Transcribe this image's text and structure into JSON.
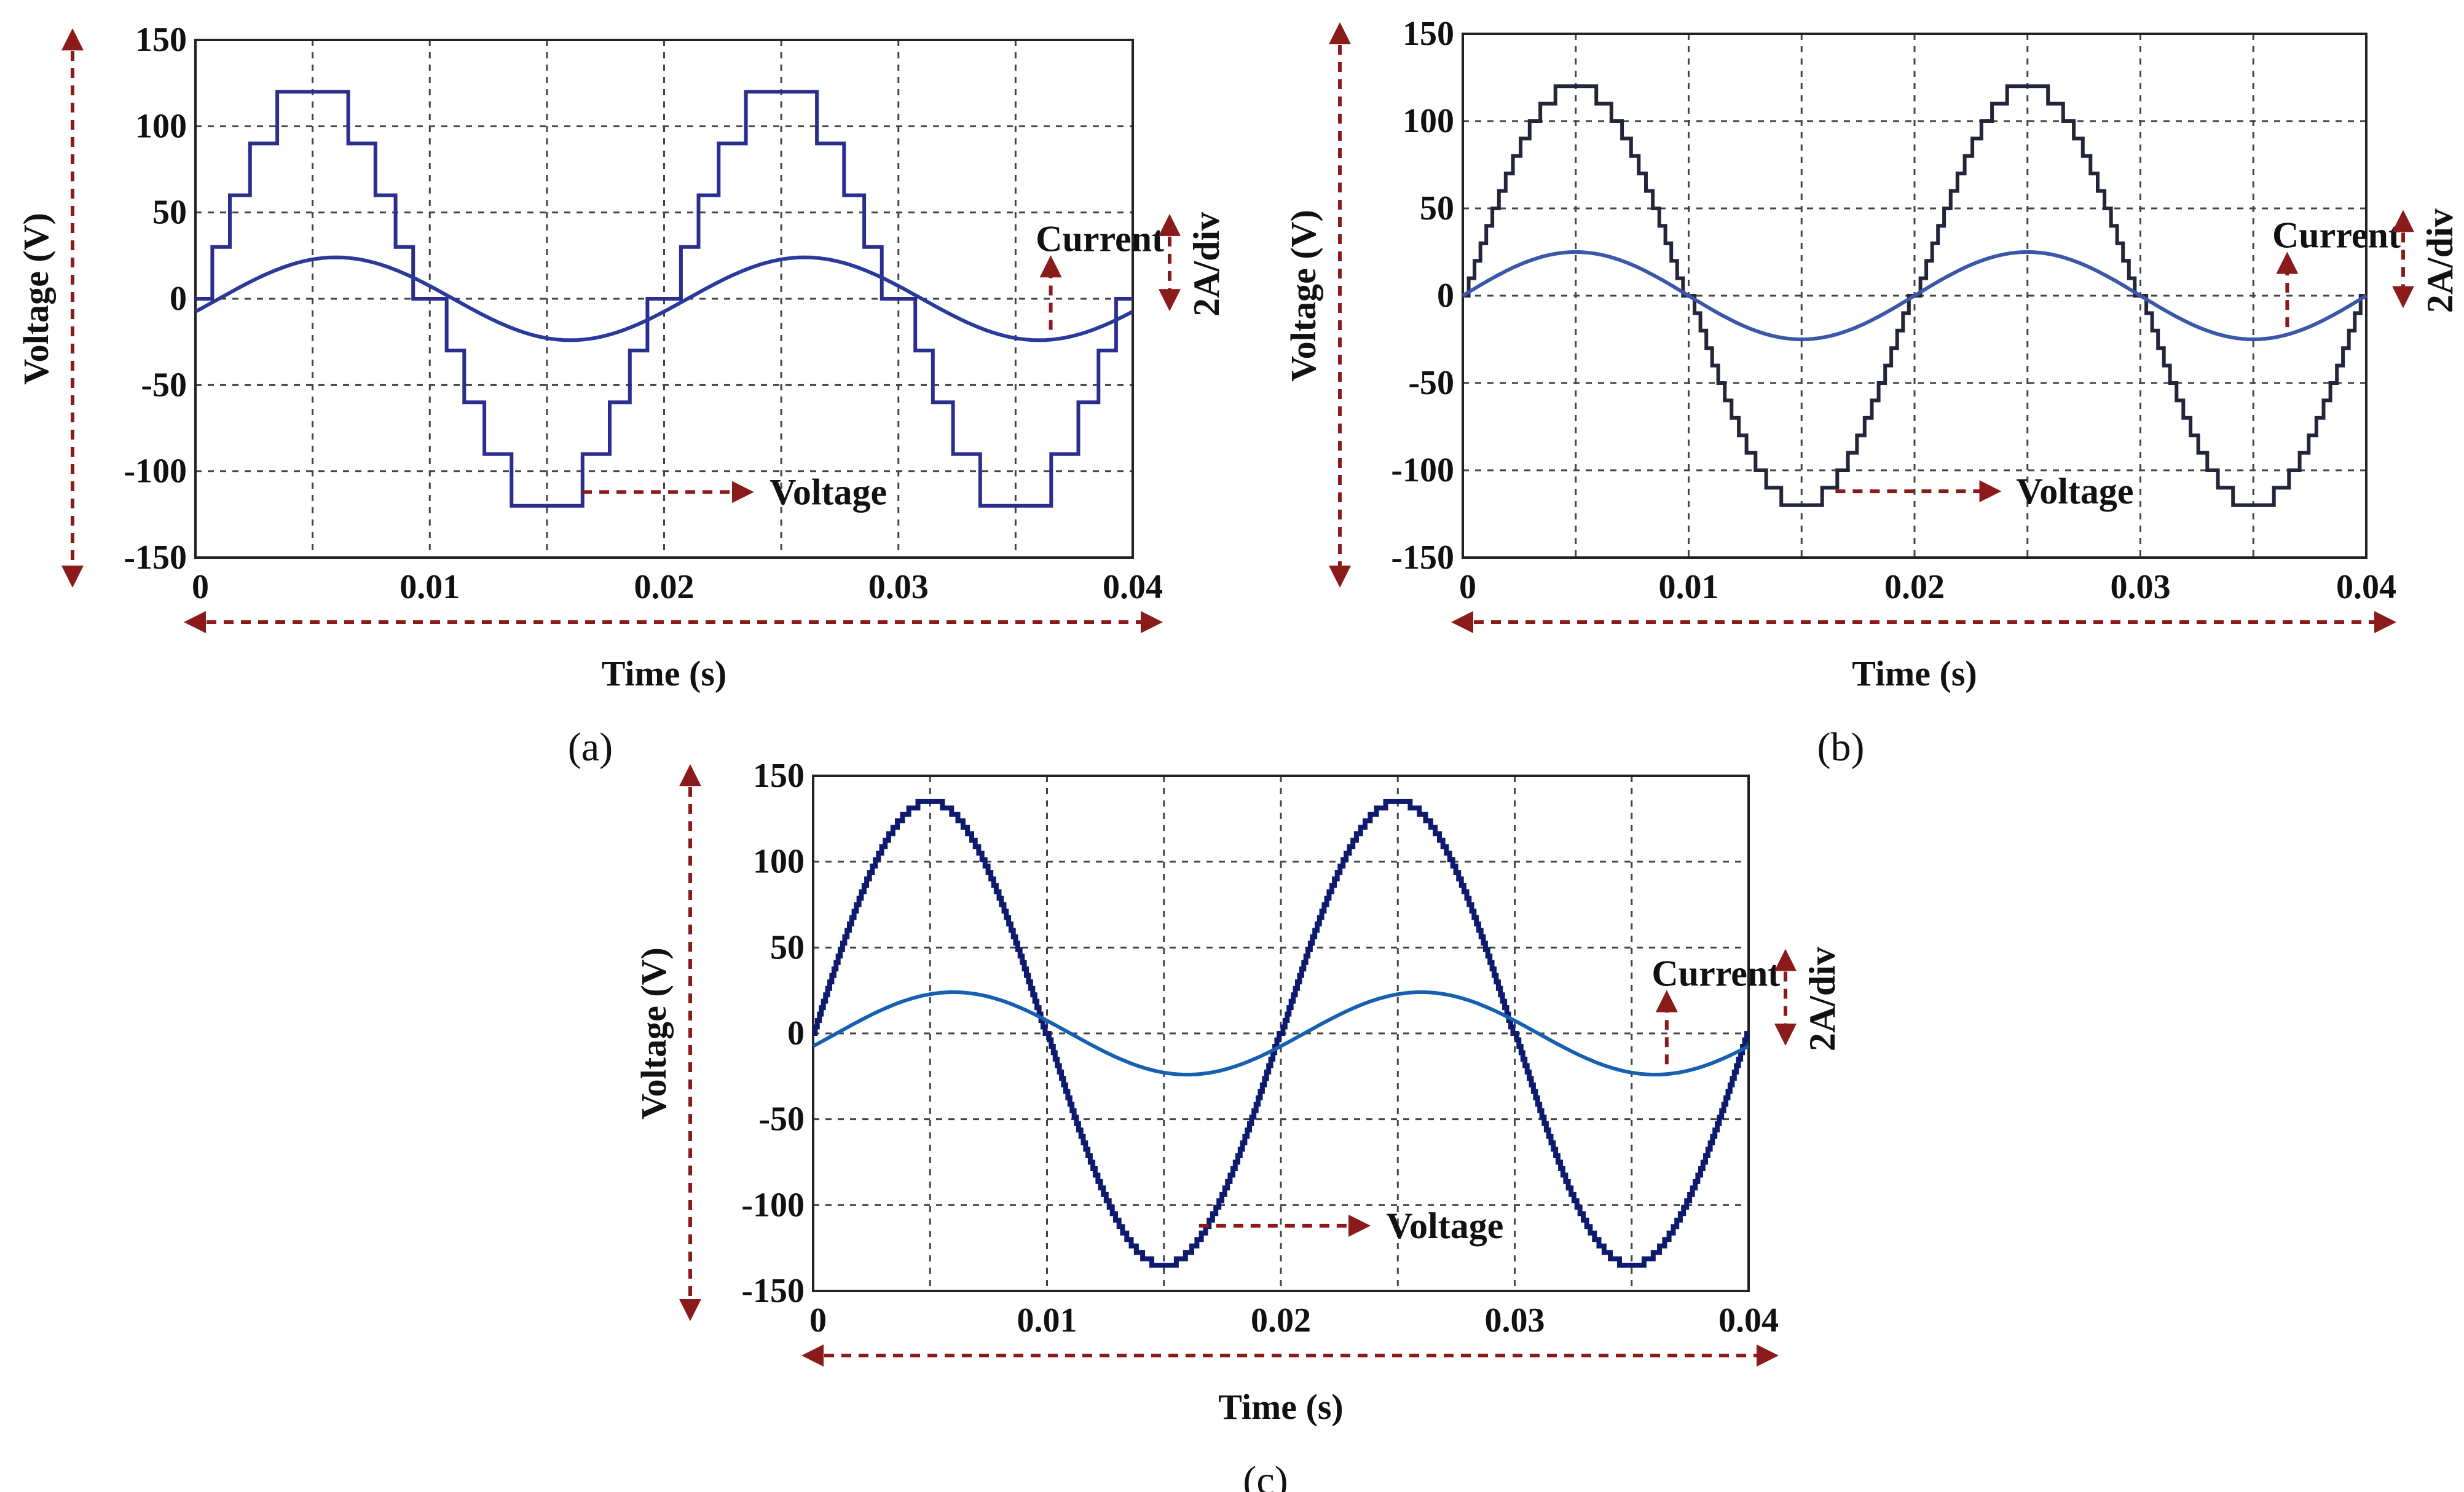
{
  "colors": {
    "annotation_arrow": "#8b1a1a",
    "voltage_a": "#2a2f8f",
    "current_a": "#2a3a9c",
    "voltage_b": "#23253a",
    "current_b": "#3b58a8",
    "voltage_c": "#0d1a6e",
    "current_c": "#1560b0"
  },
  "chart_data": [
    {
      "type": "line",
      "panel_label": "(a)",
      "xlabel": "Time (s)",
      "ylabel": "Voltage (V)",
      "xlim": [
        0,
        0.04
      ],
      "ylim": [
        -150,
        150
      ],
      "xticks": [
        0,
        0.01,
        0.02,
        0.03,
        0.04
      ],
      "xtick_labels": [
        "0",
        "0.01",
        "0.02",
        "0.03",
        "0.04"
      ],
      "yticks": [
        150,
        100,
        50,
        0,
        -50,
        -100,
        -150
      ],
      "ytick_labels": [
        "150",
        "100",
        "50",
        "0",
        "-50",
        "-100",
        "-150"
      ],
      "grid": true,
      "series": [
        {
          "name": "Voltage",
          "kind": "staircase",
          "levels": 4,
          "step_volts": 30,
          "peak": 120,
          "frequency_hz": 50,
          "phase_deg": 0
        },
        {
          "name": "Current",
          "kind": "sine",
          "amplitude_volts_equiv": 24,
          "frequency_hz": 50,
          "phase_deg": -18
        }
      ],
      "annotations": {
        "current": "Current",
        "voltage": "Voltage",
        "scale": "2A/div"
      }
    },
    {
      "type": "line",
      "panel_label": "(b)",
      "xlabel": "Time (s)",
      "ylabel": "Voltage (V)",
      "xlim": [
        0,
        0.04
      ],
      "ylim": [
        -150,
        150
      ],
      "xticks": [
        0,
        0.01,
        0.02,
        0.03,
        0.04
      ],
      "xtick_labels": [
        "0",
        "0.01",
        "0.02",
        "0.03",
        "0.04"
      ],
      "yticks": [
        150,
        100,
        50,
        0,
        -50,
        -100,
        -150
      ],
      "ytick_labels": [
        "150",
        "100",
        "50",
        "0",
        "-50",
        "-100",
        "-150"
      ],
      "grid": true,
      "series": [
        {
          "name": "Voltage",
          "kind": "staircase",
          "levels": 12,
          "step_volts": 10,
          "peak": 120,
          "frequency_hz": 50,
          "phase_deg": 0
        },
        {
          "name": "Current",
          "kind": "sine",
          "amplitude_volts_equiv": 25,
          "frequency_hz": 50,
          "phase_deg": 0
        }
      ],
      "annotations": {
        "current": "Current",
        "voltage": "Voltage",
        "scale": "2A/div"
      }
    },
    {
      "type": "line",
      "panel_label": "(c)",
      "xlabel": "Time (s)",
      "ylabel": "Voltage (V)",
      "xlim": [
        0,
        0.04
      ],
      "ylim": [
        -150,
        150
      ],
      "xticks": [
        0,
        0.01,
        0.02,
        0.03,
        0.04
      ],
      "xtick_labels": [
        "0",
        "0.01",
        "0.02",
        "0.03",
        "0.04"
      ],
      "yticks": [
        150,
        100,
        50,
        0,
        -50,
        -100,
        -150
      ],
      "ytick_labels": [
        "150",
        "100",
        "50",
        "0",
        "-50",
        "-100",
        "-150"
      ],
      "grid": true,
      "series": [
        {
          "name": "Voltage",
          "kind": "staircase",
          "levels": 36,
          "step_volts": 3.75,
          "peak": 135,
          "frequency_hz": 50,
          "phase_deg": 0
        },
        {
          "name": "Current",
          "kind": "sine",
          "amplitude_volts_equiv": 24,
          "frequency_hz": 50,
          "phase_deg": -18
        }
      ],
      "annotations": {
        "current": "Current",
        "voltage": "Voltage",
        "scale": "2A/div"
      }
    }
  ]
}
